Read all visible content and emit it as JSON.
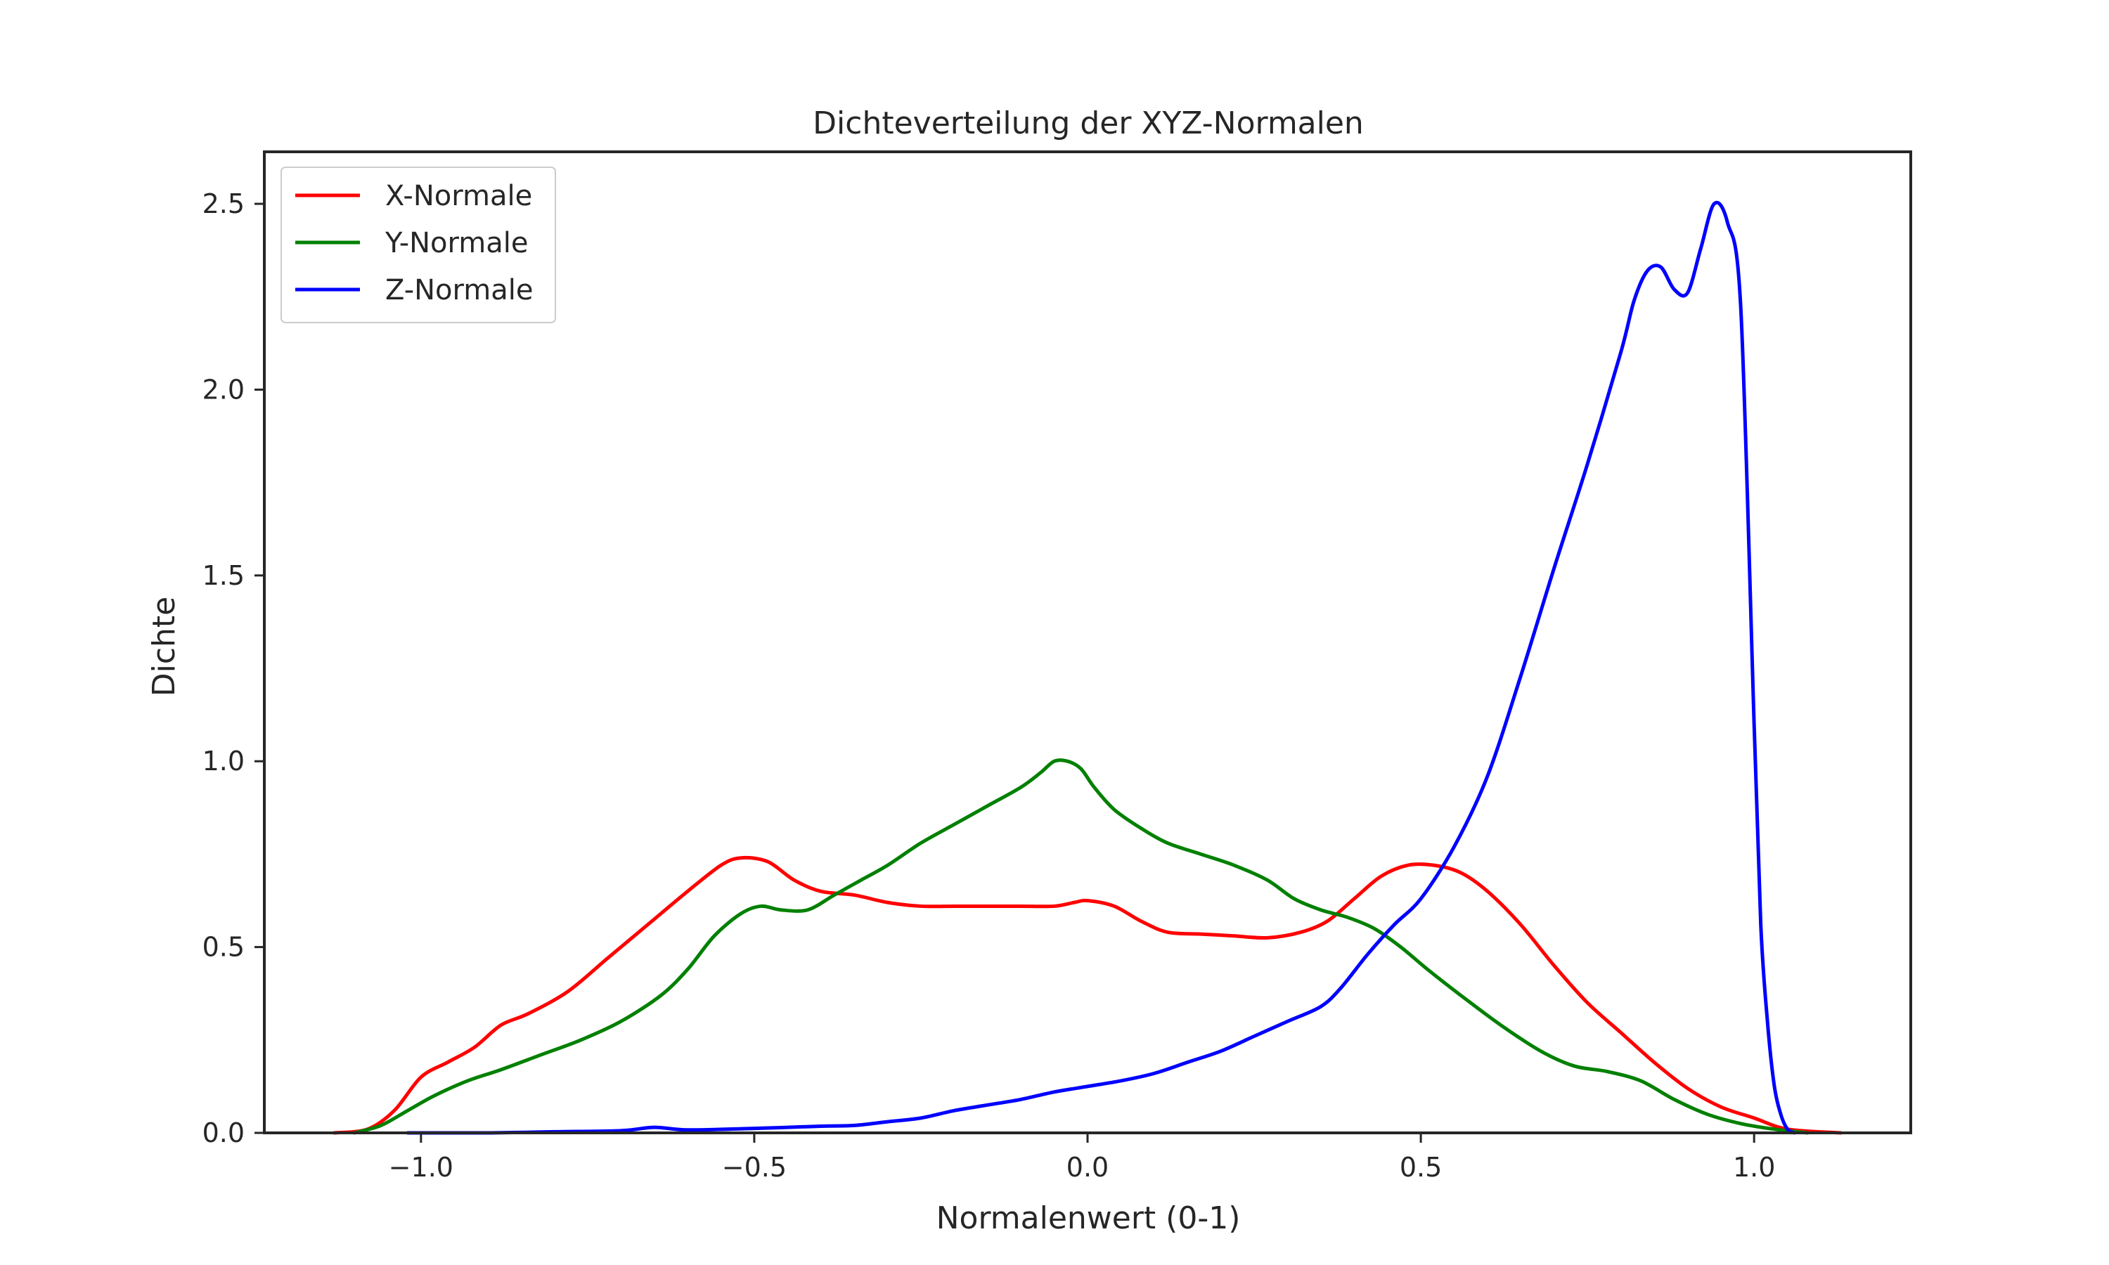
{
  "chart_data": {
    "type": "line",
    "title": "Dichteverteilung der XYZ-Normalen",
    "xlabel": "Normalenwert (0-1)",
    "ylabel": "Dichte",
    "xlim": [
      -1.235,
      1.235
    ],
    "ylim": [
      0,
      2.64
    ],
    "xticks": [
      -1.0,
      -0.5,
      0.0,
      0.5,
      1.0
    ],
    "xtick_labels": [
      "−1.0",
      "−0.5",
      "0.0",
      "0.5",
      "1.0"
    ],
    "yticks": [
      0.0,
      0.5,
      1.0,
      1.5,
      2.0,
      2.5
    ],
    "ytick_labels": [
      "0.0",
      "0.5",
      "1.0",
      "1.5",
      "2.0",
      "2.5"
    ],
    "grid": false,
    "legend_position": "top-left",
    "series": [
      {
        "name": "X-Normale",
        "color": "#ff0000",
        "x": [
          -1.13,
          -1.08,
          -1.04,
          -1.0,
          -0.96,
          -0.92,
          -0.88,
          -0.84,
          -0.78,
          -0.72,
          -0.66,
          -0.6,
          -0.55,
          -0.52,
          -0.48,
          -0.44,
          -0.4,
          -0.35,
          -0.3,
          -0.25,
          -0.2,
          -0.15,
          -0.1,
          -0.05,
          -0.02,
          0.0,
          0.04,
          0.08,
          0.12,
          0.17,
          0.22,
          0.27,
          0.32,
          0.36,
          0.4,
          0.44,
          0.48,
          0.52,
          0.56,
          0.6,
          0.65,
          0.7,
          0.75,
          0.8,
          0.85,
          0.9,
          0.95,
          1.0,
          1.05,
          1.13
        ],
        "y": [
          0.0,
          0.01,
          0.06,
          0.15,
          0.19,
          0.23,
          0.29,
          0.32,
          0.38,
          0.47,
          0.56,
          0.65,
          0.72,
          0.74,
          0.73,
          0.68,
          0.65,
          0.64,
          0.62,
          0.61,
          0.61,
          0.61,
          0.61,
          0.61,
          0.62,
          0.625,
          0.61,
          0.57,
          0.54,
          0.535,
          0.53,
          0.525,
          0.54,
          0.57,
          0.63,
          0.69,
          0.72,
          0.72,
          0.7,
          0.65,
          0.56,
          0.45,
          0.35,
          0.27,
          0.19,
          0.12,
          0.07,
          0.04,
          0.01,
          0.0
        ]
      },
      {
        "name": "Y-Normale",
        "color": "#008000",
        "x": [
          -1.1,
          -1.06,
          -1.02,
          -0.98,
          -0.93,
          -0.88,
          -0.82,
          -0.76,
          -0.7,
          -0.64,
          -0.6,
          -0.56,
          -0.52,
          -0.49,
          -0.46,
          -0.42,
          -0.38,
          -0.34,
          -0.3,
          -0.25,
          -0.2,
          -0.15,
          -0.1,
          -0.07,
          -0.05,
          -0.03,
          -0.01,
          0.01,
          0.04,
          0.08,
          0.12,
          0.17,
          0.22,
          0.27,
          0.31,
          0.35,
          0.39,
          0.43,
          0.47,
          0.51,
          0.56,
          0.62,
          0.68,
          0.73,
          0.78,
          0.83,
          0.88,
          0.93,
          0.98,
          1.03,
          1.08
        ],
        "y": [
          0.0,
          0.02,
          0.06,
          0.1,
          0.14,
          0.17,
          0.21,
          0.25,
          0.3,
          0.37,
          0.44,
          0.53,
          0.59,
          0.61,
          0.6,
          0.6,
          0.64,
          0.68,
          0.72,
          0.78,
          0.83,
          0.88,
          0.93,
          0.97,
          1.0,
          1.0,
          0.98,
          0.93,
          0.87,
          0.82,
          0.78,
          0.75,
          0.72,
          0.68,
          0.63,
          0.6,
          0.58,
          0.55,
          0.5,
          0.44,
          0.37,
          0.29,
          0.22,
          0.18,
          0.165,
          0.14,
          0.09,
          0.05,
          0.025,
          0.01,
          0.0
        ]
      },
      {
        "name": "Z-Normale",
        "color": "#0000ff",
        "x": [
          -1.02,
          -0.9,
          -0.8,
          -0.7,
          -0.65,
          -0.6,
          -0.5,
          -0.4,
          -0.35,
          -0.3,
          -0.25,
          -0.2,
          -0.15,
          -0.1,
          -0.05,
          0.0,
          0.05,
          0.1,
          0.15,
          0.2,
          0.25,
          0.3,
          0.35,
          0.38,
          0.42,
          0.46,
          0.5,
          0.55,
          0.6,
          0.65,
          0.7,
          0.75,
          0.8,
          0.82,
          0.84,
          0.86,
          0.88,
          0.9,
          0.92,
          0.94,
          0.96,
          0.98,
          1.0,
          1.01,
          1.02,
          1.03,
          1.04,
          1.05,
          1.06
        ],
        "y": [
          0.0,
          0.0,
          0.003,
          0.006,
          0.015,
          0.008,
          0.012,
          0.018,
          0.02,
          0.03,
          0.04,
          0.06,
          0.075,
          0.09,
          0.11,
          0.125,
          0.14,
          0.16,
          0.19,
          0.22,
          0.26,
          0.3,
          0.34,
          0.39,
          0.48,
          0.56,
          0.63,
          0.77,
          0.96,
          1.23,
          1.52,
          1.8,
          2.1,
          2.24,
          2.32,
          2.33,
          2.27,
          2.26,
          2.38,
          2.5,
          2.45,
          2.22,
          1.1,
          0.56,
          0.3,
          0.13,
          0.05,
          0.01,
          0.0
        ]
      }
    ]
  }
}
